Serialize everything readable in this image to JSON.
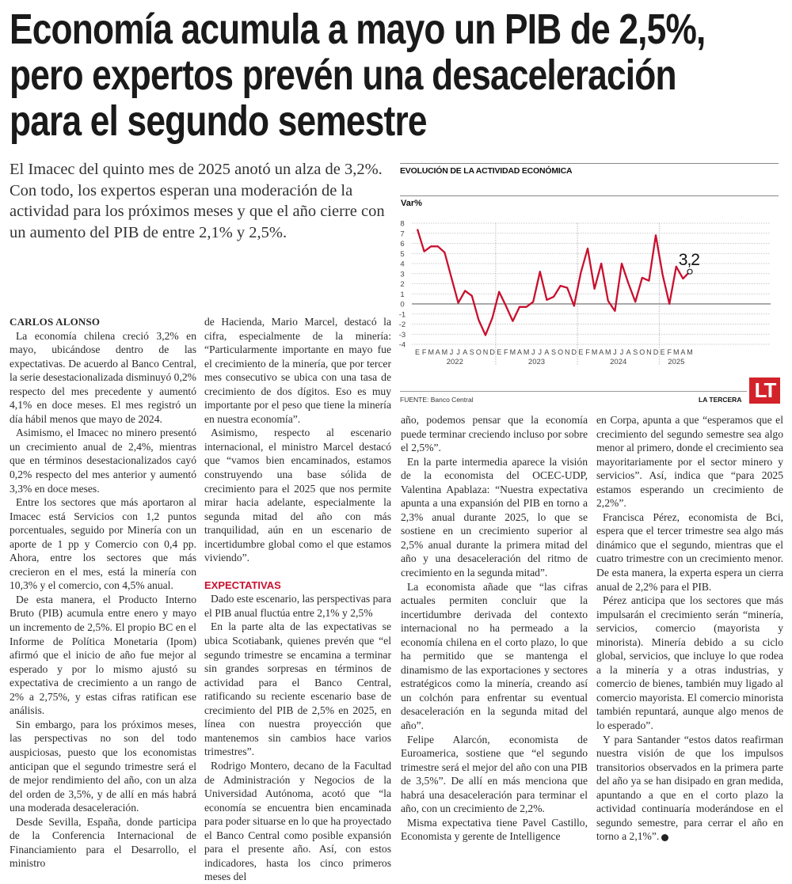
{
  "headline": {
    "lines": [
      "Economía acumula a mayo un PIB de 2,5%,",
      "pero expertos prevén una desaceleración",
      "para el segundo semestre"
    ]
  },
  "deck": "El Imacec del quinto mes de 2025 anotó un alza de 3,2%. Con todo, los expertos esperan una moderación de la actividad para los próximos meses y que el año cierre con un aumento del PIB de entre 2,1% y 2,5%.",
  "article": {
    "byline": "CARLOS ALONSO",
    "col1": [
      "La economía chilena creció 3,2% en mayo, ubicándose dentro de las expectativas. De acuerdo al Banco Central, la serie desestacionalizada disminuyó 0,2% respecto del mes precedente y aumentó 4,1% en doce meses. El mes registró un día hábil menos que mayo de 2024.",
      "Asimismo, el Imacec no minero presentó un crecimiento anual de 2,4%, mientras que en términos desestacionalizados cayó 0,2% respecto del mes anterior y aumentó 3,3% en doce meses.",
      "Entre los sectores que más aportaron al Imacec está Servicios con 1,2 puntos porcentuales, seguido por Minería con un aporte de 1 pp y Comercio con 0,4 pp. Ahora, entre los sectores que más crecieron en el mes, está la minería con 10,3% y el comercio, con 4,5% anual.",
      "De esta manera, el Producto Interno Bruto (PIB) acumula entre enero y mayo un incremento de 2,5%. El propio BC en el Informe de Política Monetaria (Ipom) afirmó que el inicio de año fue mejor al esperado y por lo mismo ajustó su expectativa de crecimiento a un rango de 2% a 2,75%, y estas cifras ratifican ese análisis.",
      "Sin embargo, para los próximos meses, las perspectivas no son del todo auspiciosas, puesto que los economistas anticipan que el segundo trimestre será el de mejor rendimiento del año, con un alza del orden de 3,5%, y de allí en más habrá una moderada desaceleración.",
      "Desde Sevilla, España, donde participa de la Conferencia Internacional de Financiamiento para el Desarrollo, el ministro"
    ],
    "col2_lead": "de Hacienda, Mario Marcel, destacó la cifra, especialmente de la minería: “Particularmente importante en mayo fue el crecimiento de la minería, que por tercer mes consecutivo se ubica con una tasa de crecimiento de dos dígitos. Eso es muy importante por el peso que tiene la minería en nuestra economía”.",
    "col2_p2": "Asimismo, respecto al escenario internacional, el ministro Marcel destacó que “vamos bien encaminados, estamos construyendo una base sólida de crecimiento para el 2025 que nos permite mirar hacia adelante, especialmente la segunda mitad del año con más tranquilidad, aún en un escenario de incertidumbre global como el que estamos viviendo”.",
    "subhead": "EXPECTATIVAS",
    "col2_rest": [
      "Dado este escenario, las perspectivas para el PIB anual fluctúa entre 2,1% y 2,5%",
      "En la parte alta de las expectativas se ubica Scotiabank, quienes prevén que “el segundo trimestre se encamina a terminar sin grandes sorpresas en términos de actividad para el Banco Central, ratificando su reciente escenario base de crecimiento del PIB de 2,5% en 2025, en línea con nuestra proyección que mantenemos sin cambios hace varios trimestres”.",
      "Rodrigo Montero, decano de la Facultad de Administración y Negocios de la Universidad Autónoma, acotó que “la economía se encuentra bien encaminada para poder situarse en lo que ha proyectado el Banco Central como posible expansión para el presente año. Así, con estos indicadores, hasta los cinco primeros meses del"
    ],
    "col3_lead": "año, podemos pensar que la economía puede terminar creciendo incluso por sobre el 2,5%”.",
    "col3": [
      "En la parte intermedia aparece la visión de la economista del OCEC-UDP, Valentina Apablaza: “Nuestra expectativa apunta a una expansión del PIB en torno a 2,3% anual durante 2025, lo que se sostiene en un crecimiento superior al 2,5% anual durante la primera mitad del año y una desaceleración del ritmo de crecimiento en la segunda mitad”.",
      "La economista añade que “las cifras actuales permiten concluir que la incertidumbre derivada del contexto internacional no ha permeado a la economía chilena en el corto plazo, lo que ha permitido que se mantenga el dinamismo de las exportaciones y sectores estratégicos como la minería, creando así un colchón para enfrentar su eventual desaceleración en la segunda mitad del año”.",
      "Felipe Alarcón, economista de Euroamerica, sostiene que “el segundo trimestre será el mejor del año con una PIB de 3,5%”. De allí en más menciona que habrá una desaceleración para terminar el año, con un crecimiento de 2,2%.",
      "Misma expectativa tiene Pavel Castillo, Economista y gerente de Intelligence"
    ],
    "col4_lead": "en Corpa, apunta a que “esperamos que el crecimiento del segundo semestre sea algo menor al primero, donde el crecimiento sea mayoritariamente por el sector minero y servicios”. Así, indica que “para 2025 estamos esperando un crecimiento de 2,2%”.",
    "col4": [
      "Francisca Pérez, economista de Bci, espera que el tercer trimestre sea algo más dinámico que el segundo, mientras que el cuatro trimestre con un crecimiento menor. De esta manera, la experta espera un cierra anual de 2,2% para el PIB.",
      "Pérez anticipa que los sectores que más impulsarán el crecimiento serán “minería, servicios, comercio (mayorista y minorista). Minería debido a su ciclo global, servicios, que incluye lo que rodea a la minería y a otras industrias, y comercio de bienes, también muy ligado al comercio mayorista. El comercio minorista también repuntará, aunque algo menos de lo esperado”.",
      "Y para Santander “estos datos reafirman nuestra visión de que los impulsos transitorios observados en la primera parte del año ya se han disipado en gran medida, apuntando a que en el corto plazo la actividad continuaría moderándose en el segundo semestre, para cerrar el año en torno a 2,1%”."
    ]
  },
  "chart_data": {
    "type": "line",
    "title": "EVOLUCIÓN DE LA ACTIVIDAD ECONÓMICA",
    "ylabel": "Var%",
    "ylim": [
      -4,
      8
    ],
    "yticks": [
      8,
      7,
      6,
      5,
      4,
      3,
      2,
      1,
      0,
      -1,
      -2,
      -3,
      -4
    ],
    "grid": true,
    "years": [
      {
        "label": "2022",
        "months": [
          "E",
          "F",
          "M",
          "A",
          "M",
          "J",
          "J",
          "A",
          "S",
          "O",
          "N",
          "D"
        ]
      },
      {
        "label": "2023",
        "months": [
          "E",
          "F",
          "M",
          "A",
          "M",
          "J",
          "J",
          "A",
          "S",
          "O",
          "N",
          "D"
        ]
      },
      {
        "label": "2024",
        "months": [
          "E",
          "F",
          "M",
          "A",
          "M",
          "J",
          "J",
          "A",
          "S",
          "O",
          "N",
          "D"
        ]
      },
      {
        "label": "2025",
        "months": [
          "E",
          "F",
          "M",
          "A",
          "M"
        ]
      }
    ],
    "values": [
      7.4,
      5.2,
      5.7,
      5.7,
      5.1,
      2.6,
      0.1,
      1.3,
      0.8,
      -1.6,
      -3.1,
      -1.4,
      1.2,
      -0.2,
      -1.7,
      -0.3,
      -0.3,
      0.2,
      3.2,
      0.4,
      0.7,
      1.8,
      1.6,
      -0.2,
      3.1,
      5.5,
      1.5,
      4.0,
      0.3,
      -0.7,
      4.0,
      2.0,
      0.2,
      2.6,
      2.3,
      6.8,
      2.9,
      0.0,
      3.7,
      2.5,
      3.2
    ],
    "annotation": "3,2",
    "line_color": "#c8102e",
    "source": "FUENTE: Banco Central"
  },
  "footer": {
    "brand": "LA TERCERA",
    "logo": "LT",
    "brand_color": "#d2232a"
  }
}
